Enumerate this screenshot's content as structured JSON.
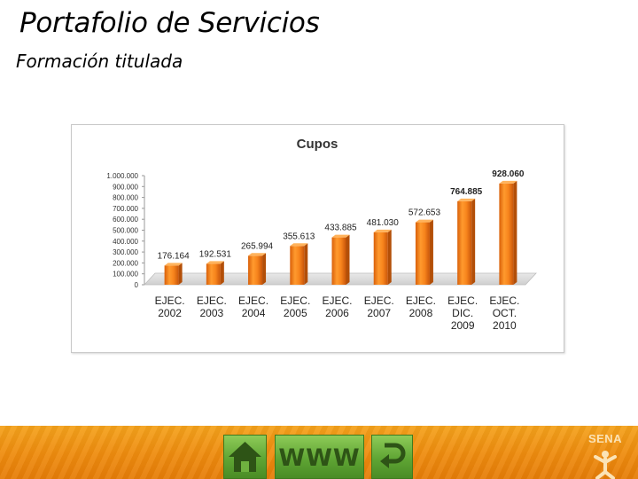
{
  "slide": {
    "title": "Portafolio de Servicios",
    "subtitle": "Formación titulada"
  },
  "chart_data": {
    "type": "bar",
    "title": "Cupos",
    "categories": [
      [
        "EJEC.",
        "2002"
      ],
      [
        "EJEC.",
        "2003"
      ],
      [
        "EJEC.",
        "2004"
      ],
      [
        "EJEC.",
        "2005"
      ],
      [
        "EJEC.",
        "2006"
      ],
      [
        "EJEC.",
        "2007"
      ],
      [
        "EJEC.",
        "2008"
      ],
      [
        "EJEC.",
        "DIC.",
        "2009"
      ],
      [
        "EJEC.",
        "OCT.",
        "2010"
      ]
    ],
    "values": [
      176164,
      192531,
      265994,
      355613,
      433885,
      481030,
      572653,
      764885,
      928060
    ],
    "value_labels": [
      "176.164",
      "192.531",
      "265.994",
      "355.613",
      "433.885",
      "481.030",
      "572.653",
      "764.885",
      "928.060"
    ],
    "ylim": [
      0,
      1000000
    ],
    "yticks": [
      0,
      100000,
      200000,
      300000,
      400000,
      500000,
      600000,
      700000,
      800000,
      900000,
      1000000
    ],
    "ytick_labels": [
      "0",
      "100.000",
      "200.000",
      "300.000",
      "400.000",
      "500.000",
      "600.000",
      "700.000",
      "800.000",
      "900.000",
      "1.000.000"
    ],
    "bar_color": "#f0821e",
    "grid": false,
    "legend": "none",
    "style": "3d-cylinder"
  },
  "footer": {
    "www_label": "WWW",
    "logo_text": "SENA",
    "home_icon": "home-icon",
    "back_icon": "return-arrow-icon",
    "color": "#ee8b0e"
  }
}
